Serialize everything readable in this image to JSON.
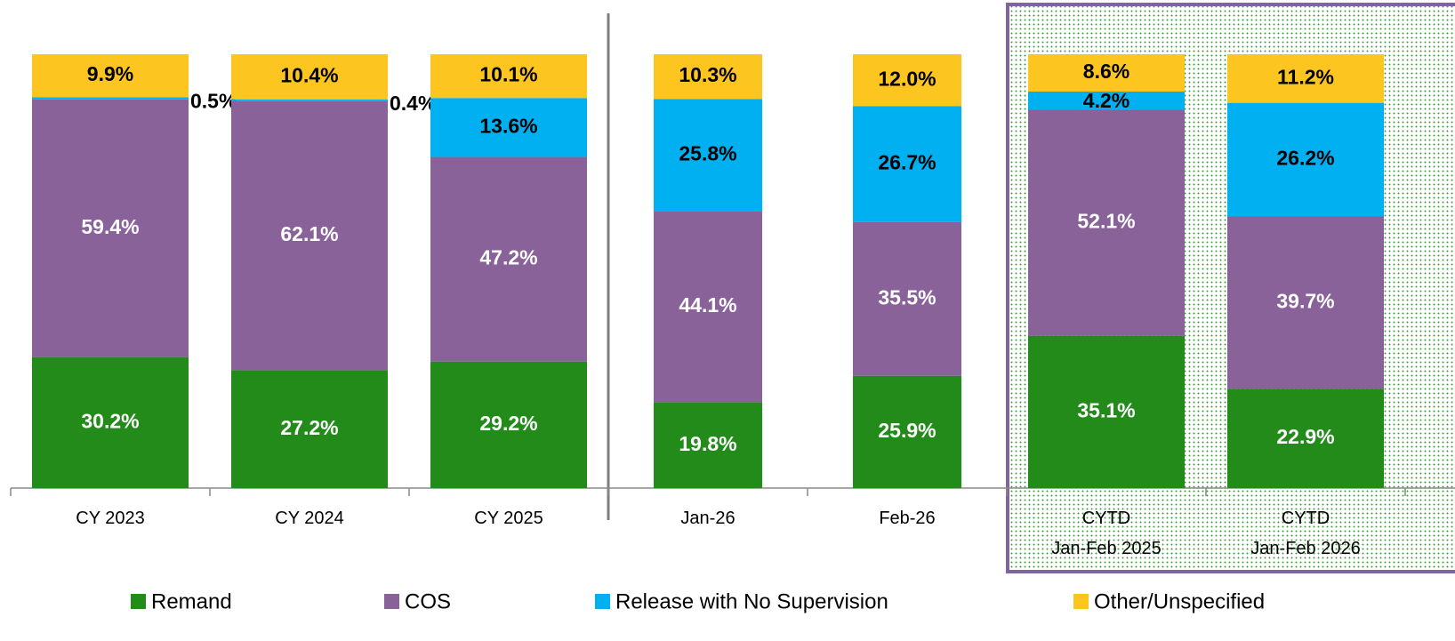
{
  "chart_data": {
    "type": "stacked_bar",
    "categories": [
      "CY 2023",
      "CY 2024",
      "CY 2025",
      "Jan-26",
      "Feb-26",
      "CYTD\nJan-Feb 2025",
      "CYTD\nJan-Feb 2026"
    ],
    "series": [
      {
        "name": "Remand",
        "color": "#238b1a",
        "values": [
          30.2,
          27.2,
          29.2,
          19.8,
          25.9,
          35.1,
          22.9
        ],
        "value_labels": [
          "30.2%",
          "27.2%",
          "29.2%",
          "19.8%",
          "25.9%",
          "35.1%",
          "22.9%"
        ]
      },
      {
        "name": "COS",
        "color": "#8a629a",
        "values": [
          59.4,
          62.1,
          47.2,
          44.1,
          35.5,
          52.1,
          39.7
        ],
        "value_labels": [
          "59.4%",
          "62.1%",
          "47.2%",
          "44.1%",
          "35.5%",
          "52.1%",
          "39.7%"
        ]
      },
      {
        "name": "Release with No Supervision",
        "color": "#00b0f0",
        "values": [
          0.5,
          0.4,
          13.6,
          25.8,
          26.7,
          4.2,
          26.2
        ],
        "value_labels": [
          "0.5%",
          "0.4%",
          "13.6%",
          "25.8%",
          "26.7%",
          "4.2%",
          "26.2%"
        ]
      },
      {
        "name": "Other/Unspecified",
        "color": "#fdc520",
        "values": [
          9.9,
          10.4,
          10.1,
          10.3,
          12.0,
          8.6,
          11.2
        ],
        "value_labels": [
          "9.9%",
          "10.4%",
          "10.1%",
          "10.3%",
          "12.0%",
          "8.6%",
          "11.2%"
        ]
      }
    ]
  }
}
